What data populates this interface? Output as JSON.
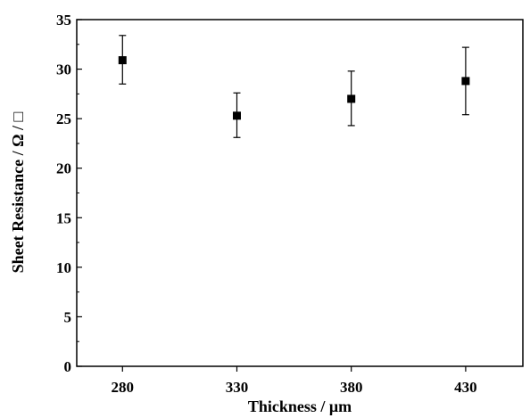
{
  "chart_data": {
    "type": "scatter",
    "xlabel": "Thickness / μm",
    "ylabel": "Sheet Resistance / Ω / □",
    "xlim": [
      260,
      455
    ],
    "ylim": [
      0,
      35
    ],
    "xticks": [
      280,
      330,
      380,
      430
    ],
    "yticks": [
      0,
      5,
      10,
      15,
      20,
      25,
      30,
      35
    ],
    "x_tick_labels": [
      "280",
      "330",
      "380",
      "430"
    ],
    "y_tick_labels": [
      "0",
      "5",
      "10",
      "15",
      "20",
      "25",
      "30",
      "35"
    ],
    "grid": false,
    "legend": "none",
    "marker": "square",
    "color": "#000000",
    "points": [
      {
        "x": 280,
        "y": 30.9,
        "err_low": 28.5,
        "err_high": 33.4
      },
      {
        "x": 330,
        "y": 25.3,
        "err_low": 23.1,
        "err_high": 27.6
      },
      {
        "x": 380,
        "y": 27.0,
        "err_low": 24.3,
        "err_high": 29.8
      },
      {
        "x": 430,
        "y": 28.8,
        "err_low": 25.4,
        "err_high": 32.2
      }
    ]
  }
}
